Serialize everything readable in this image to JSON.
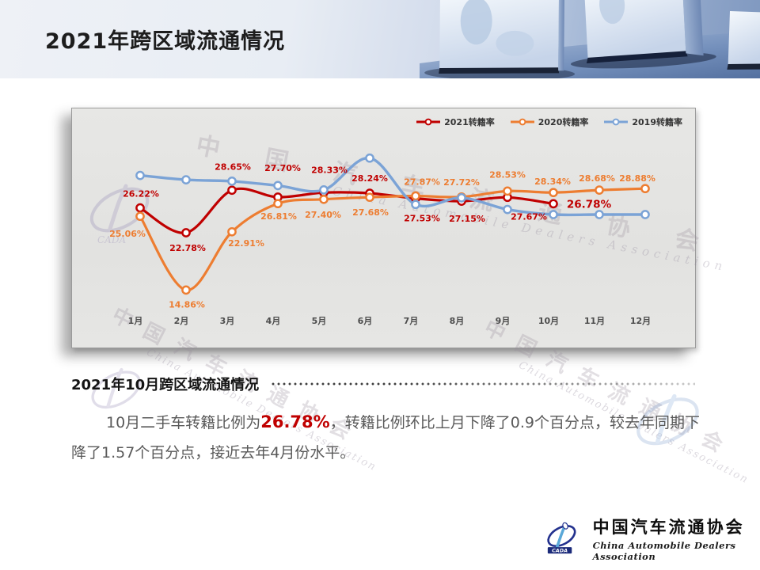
{
  "header": {
    "title": "2021年跨区域流通情况"
  },
  "chart_data": {
    "type": "line",
    "title": "",
    "xlabel": "",
    "ylabel": "",
    "categories": [
      "1月",
      "2月",
      "3月",
      "4月",
      "5月",
      "6月",
      "7月",
      "8月",
      "9月",
      "10月",
      "11月",
      "12月"
    ],
    "series": [
      {
        "name": "2021转籍率",
        "color": "#c00000",
        "values": [
          26.22,
          22.78,
          28.65,
          27.7,
          28.33,
          28.24,
          27.53,
          27.15,
          27.67,
          26.78,
          null,
          null
        ],
        "data_labels": [
          "26.22%",
          "22.78%",
          "28.65%",
          "27.70%",
          "28.33%",
          "28.24%",
          "27.53%",
          "27.15%",
          "27.67%",
          "26.78%",
          null,
          null
        ]
      },
      {
        "name": "2020转籍率",
        "color": "#ed7d31",
        "values": [
          25.06,
          14.86,
          22.91,
          26.81,
          27.4,
          27.68,
          27.87,
          27.72,
          28.53,
          28.34,
          28.68,
          28.88
        ],
        "data_labels": [
          "25.06%",
          "14.86%",
          "22.91%",
          "26.81%",
          "27.40%",
          "27.68%",
          "27.87%",
          "27.72%",
          "28.53%",
          "28.34%",
          "28.68%",
          "28.88%"
        ]
      },
      {
        "name": "2019转籍率",
        "color": "#7ba3d6",
        "values": [
          30.7,
          30.1,
          29.9,
          29.3,
          28.7,
          33.1,
          26.7,
          27.6,
          26.0,
          25.3,
          25.3,
          25.3
        ],
        "data_labels": null
      }
    ],
    "ylim": [
      13,
      35
    ],
    "grid": false,
    "legend_position": "top-right"
  },
  "summary": {
    "heading": "2021年10月跨区域流通情况",
    "text_before": "10月二手车转籍比例为",
    "highlight": "26.78%",
    "text_after": "，转籍比例环比上月下降了0.9个百分点，较去年同期下降了1.57个百分点，接近去年4月份水平。"
  },
  "footer": {
    "org_cn": "中国汽车流通协会",
    "org_en": "China Automobile Dealers Association",
    "abbr": "CADA"
  },
  "watermark": {
    "cn": "中国汽车流通协会",
    "en": "China Automobile Dealers Association"
  }
}
